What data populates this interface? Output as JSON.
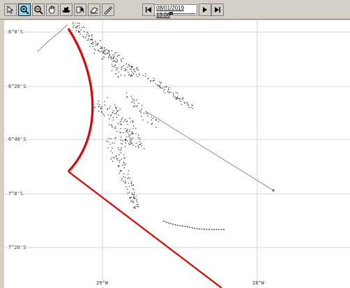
{
  "toolbar": {
    "tools": [
      {
        "icon": "pointer-arrow-icon"
      },
      {
        "icon": "zoom-in-icon",
        "active": true
      },
      {
        "icon": "zoom-out-icon"
      },
      {
        "icon": "pan-hand-icon"
      },
      {
        "icon": "ship-icon"
      },
      {
        "icon": "select-cursor-icon"
      },
      {
        "icon": "eraser-icon"
      },
      {
        "icon": "measure-icon"
      }
    ],
    "time_value": "08/01/2019 13:06"
  },
  "map": {
    "lat_labels": [
      "6°0'S",
      "6°20'S",
      "6°40'S",
      "7°0'S",
      "7°20'S"
    ],
    "lon_labels": [
      "29°W",
      "28°W"
    ],
    "colors": {
      "grid": "#c8c8c8",
      "overlay": "#e60000",
      "track": "#808080",
      "points": "#222222"
    }
  }
}
